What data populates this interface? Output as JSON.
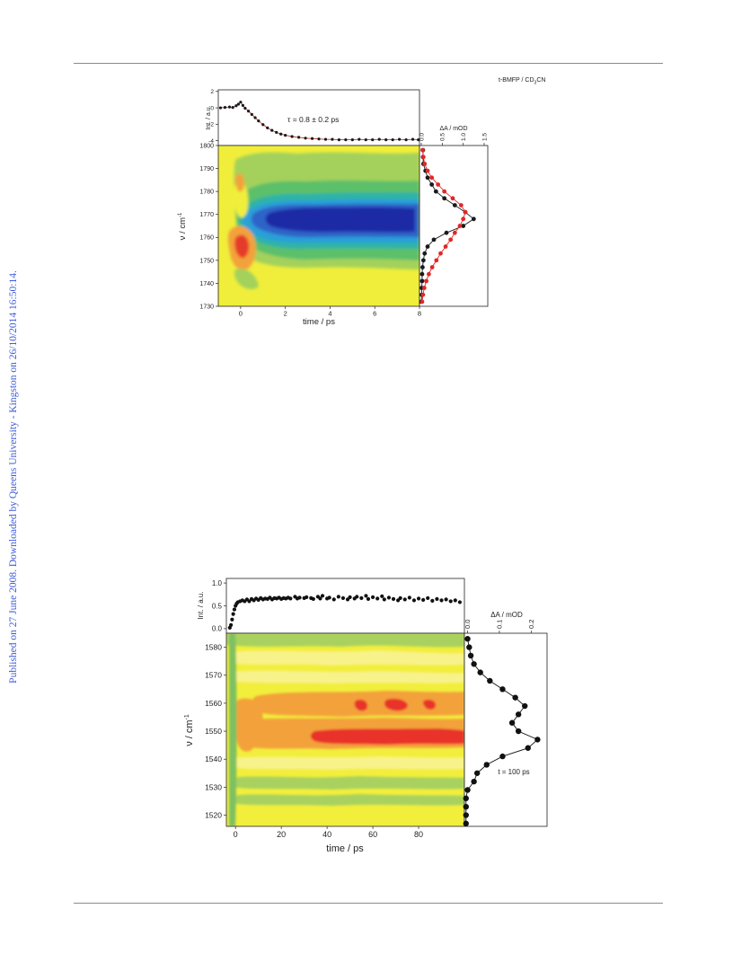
{
  "side_note": "Published on 27 June 2008. Downloaded by Queens University - Kingston on 26/10/2014 16:50:14.",
  "figure1": {
    "sample_label": "t-BMFP / CD3CN",
    "sample_label_parts": {
      "pre": "t-BMFP / CD",
      "sub": "3",
      "post": "CN"
    },
    "tau_text": "τ = 0.8 ± 0.2 ps",
    "kinetics": {
      "ylabel": "Int. / a.u.",
      "yticks": [
        "2",
        "0",
        "-2",
        "-4"
      ],
      "ytick_values": [
        2,
        0,
        -2,
        -4
      ],
      "ylim": [
        -4.6,
        2.2
      ],
      "xlim": [
        -1,
        8
      ],
      "points": [
        [
          -0.9,
          0.0
        ],
        [
          -0.7,
          0.05
        ],
        [
          -0.5,
          0.1
        ],
        [
          -0.35,
          0.05
        ],
        [
          -0.2,
          0.25
        ],
        [
          -0.1,
          0.45
        ],
        [
          0.0,
          0.7
        ],
        [
          0.1,
          0.3
        ],
        [
          0.2,
          -0.05
        ],
        [
          0.35,
          -0.4
        ],
        [
          0.5,
          -0.8
        ],
        [
          0.65,
          -1.2
        ],
        [
          0.8,
          -1.6
        ],
        [
          1.0,
          -2.05
        ],
        [
          1.2,
          -2.45
        ],
        [
          1.4,
          -2.75
        ],
        [
          1.6,
          -3.0
        ],
        [
          1.8,
          -3.2
        ],
        [
          2.0,
          -3.35
        ],
        [
          2.3,
          -3.5
        ],
        [
          2.6,
          -3.6
        ],
        [
          2.9,
          -3.7
        ],
        [
          3.2,
          -3.75
        ],
        [
          3.5,
          -3.8
        ],
        [
          3.8,
          -3.85
        ],
        [
          4.1,
          -3.85
        ],
        [
          4.4,
          -3.9
        ],
        [
          4.7,
          -3.9
        ],
        [
          5.0,
          -3.9
        ],
        [
          5.3,
          -3.85
        ],
        [
          5.6,
          -3.9
        ],
        [
          5.9,
          -3.9
        ],
        [
          6.2,
          -3.85
        ],
        [
          6.5,
          -3.9
        ],
        [
          6.8,
          -3.9
        ],
        [
          7.1,
          -3.85
        ],
        [
          7.4,
          -3.9
        ],
        [
          7.7,
          -3.85
        ],
        [
          7.95,
          -3.9
        ]
      ]
    },
    "contour": {
      "ylabel_main": "ν / cm",
      "ylabel_sup": "-1",
      "xlabel": "time / ps",
      "xticks": [
        "0",
        "2",
        "4",
        "6",
        "8"
      ],
      "xtick_values": [
        0,
        2,
        4,
        6,
        8
      ],
      "yticks": [
        "1800",
        "1790",
        "1780",
        "1770",
        "1760",
        "1750",
        "1740",
        "1730"
      ],
      "ytick_values": [
        1800,
        1790,
        1780,
        1770,
        1760,
        1750,
        1740,
        1730
      ],
      "xlim": [
        -1,
        8
      ],
      "ylim": [
        1730,
        1800
      ],
      "center_wavenumber": 1767,
      "colors": {
        "background": "#f0ee3a",
        "green_outer": "#a3d15b",
        "green_inner": "#5cc06a",
        "teal": "#2fb3a8",
        "cyan": "#2c9fd8",
        "blue": "#2f63c8",
        "navy": "#1c2aa6",
        "orange": "#f3a23a",
        "red": "#e63a2a"
      }
    },
    "spectrum": {
      "xlabel": "ΔA / mOD",
      "xticks": [
        "0.0",
        "0.5",
        "1.0",
        "1.5"
      ],
      "xtick_values": [
        0,
        0.5,
        1.0,
        1.5
      ],
      "xlim": [
        0,
        1.5
      ],
      "series": [
        {
          "color": "#1a1a1a",
          "points": [
            [
              1798,
              0.04
            ],
            [
              1795,
              0.04
            ],
            [
              1792,
              0.05
            ],
            [
              1789,
              0.1
            ],
            [
              1786,
              0.15
            ],
            [
              1783,
              0.25
            ],
            [
              1780,
              0.35
            ],
            [
              1777,
              0.55
            ],
            [
              1774,
              0.8
            ],
            [
              1771,
              1.05
            ],
            [
              1768,
              1.25
            ],
            [
              1765,
              1.0
            ],
            [
              1762,
              0.6
            ],
            [
              1759,
              0.3
            ],
            [
              1756,
              0.15
            ],
            [
              1753,
              0.08
            ],
            [
              1750,
              0.05
            ],
            [
              1747,
              0.03
            ],
            [
              1744,
              0.02
            ],
            [
              1741,
              0.02
            ],
            [
              1738,
              0.01
            ],
            [
              1735,
              0.01
            ],
            [
              1732,
              0.0
            ]
          ]
        },
        {
          "color": "#e02828",
          "points": [
            [
              1798,
              0.03
            ],
            [
              1795,
              0.05
            ],
            [
              1792,
              0.08
            ],
            [
              1789,
              0.15
            ],
            [
              1786,
              0.25
            ],
            [
              1783,
              0.4
            ],
            [
              1780,
              0.55
            ],
            [
              1777,
              0.75
            ],
            [
              1774,
              0.95
            ],
            [
              1771,
              1.05
            ],
            [
              1768,
              1.0
            ],
            [
              1765,
              0.92
            ],
            [
              1762,
              0.8
            ],
            [
              1759,
              0.7
            ],
            [
              1756,
              0.58
            ],
            [
              1753,
              0.46
            ],
            [
              1750,
              0.36
            ],
            [
              1747,
              0.26
            ],
            [
              1744,
              0.18
            ],
            [
              1741,
              0.12
            ],
            [
              1738,
              0.07
            ],
            [
              1735,
              0.04
            ],
            [
              1732,
              0.02
            ]
          ]
        }
      ]
    }
  },
  "figure2": {
    "kinetics": {
      "ylabel": "Int. / a.u.",
      "yticks": [
        "1.0",
        "0.5",
        "0.0"
      ],
      "ytick_values": [
        1.0,
        0.5,
        0.0
      ],
      "ylim": [
        -0.1,
        1.1
      ],
      "xlim": [
        -4,
        100
      ],
      "points": [
        [
          -2.5,
          0.02
        ],
        [
          -2,
          0.08
        ],
        [
          -1.5,
          0.2
        ],
        [
          -1,
          0.32
        ],
        [
          -0.5,
          0.42
        ],
        [
          0,
          0.5
        ],
        [
          0.5,
          0.55
        ],
        [
          1,
          0.58
        ],
        [
          2,
          0.6
        ],
        [
          3,
          0.62
        ],
        [
          4,
          0.6
        ],
        [
          5,
          0.64
        ],
        [
          6,
          0.6
        ],
        [
          7,
          0.65
        ],
        [
          8,
          0.62
        ],
        [
          9,
          0.66
        ],
        [
          10,
          0.63
        ],
        [
          11,
          0.67
        ],
        [
          12,
          0.64
        ],
        [
          13,
          0.66
        ],
        [
          14,
          0.65
        ],
        [
          15,
          0.68
        ],
        [
          16,
          0.64
        ],
        [
          17,
          0.67
        ],
        [
          18,
          0.66
        ],
        [
          19,
          0.68
        ],
        [
          20,
          0.65
        ],
        [
          21,
          0.67
        ],
        [
          22,
          0.66
        ],
        [
          23,
          0.68
        ],
        [
          24,
          0.66
        ],
        [
          26,
          0.7
        ],
        [
          27,
          0.66
        ],
        [
          28,
          0.68
        ],
        [
          30,
          0.67
        ],
        [
          31,
          0.69
        ],
        [
          33,
          0.67
        ],
        [
          34,
          0.65
        ],
        [
          36,
          0.7
        ],
        [
          37,
          0.66
        ],
        [
          38,
          0.72
        ],
        [
          40,
          0.66
        ],
        [
          41,
          0.68
        ],
        [
          43,
          0.64
        ],
        [
          45,
          0.7
        ],
        [
          47,
          0.67
        ],
        [
          49,
          0.64
        ],
        [
          50,
          0.69
        ],
        [
          52,
          0.66
        ],
        [
          53,
          0.7
        ],
        [
          55,
          0.67
        ],
        [
          57,
          0.72
        ],
        [
          58,
          0.65
        ],
        [
          60,
          0.69
        ],
        [
          62,
          0.66
        ],
        [
          64,
          0.71
        ],
        [
          65,
          0.64
        ],
        [
          67,
          0.68
        ],
        [
          69,
          0.65
        ],
        [
          71,
          0.62
        ],
        [
          72,
          0.67
        ],
        [
          74,
          0.64
        ],
        [
          76,
          0.68
        ],
        [
          78,
          0.62
        ],
        [
          80,
          0.66
        ],
        [
          82,
          0.63
        ],
        [
          84,
          0.67
        ],
        [
          86,
          0.61
        ],
        [
          88,
          0.65
        ],
        [
          90,
          0.62
        ],
        [
          92,
          0.64
        ],
        [
          94,
          0.6
        ],
        [
          96,
          0.62
        ],
        [
          98,
          0.58
        ]
      ]
    },
    "contour": {
      "ylabel_main": "ν / cm",
      "ylabel_sup": "-1",
      "xlabel": "time / ps",
      "xticks": [
        "0",
        "20",
        "40",
        "60",
        "80"
      ],
      "xtick_values": [
        0,
        20,
        40,
        60,
        80
      ],
      "yticks": [
        "1580",
        "1570",
        "1560",
        "1550",
        "1540",
        "1530",
        "1520"
      ],
      "ytick_values": [
        1580,
        1570,
        1560,
        1550,
        1540,
        1530,
        1520
      ],
      "xlim": [
        -4,
        100
      ],
      "ylim": [
        1516,
        1585
      ],
      "colors": {
        "background": "#f2ee3c",
        "light": "#f8f28a",
        "green": "#a8d15e",
        "green_dark": "#7fc060",
        "orange": "#f3a23a",
        "red": "#e8322a"
      }
    },
    "spectrum": {
      "xlabel": "ΔA / mOD",
      "xticks": [
        "0.0",
        "0.1",
        "0.2"
      ],
      "xtick_values": [
        0,
        0.1,
        0.2
      ],
      "xlim": [
        -0.01,
        0.25
      ],
      "annotation": "t = 100 ps",
      "series": [
        {
          "color": "#111111",
          "points": [
            [
              1583,
              0.0
            ],
            [
              1580,
              0.005
            ],
            [
              1577,
              0.01
            ],
            [
              1574,
              0.02
            ],
            [
              1571,
              0.04
            ],
            [
              1568,
              0.07
            ],
            [
              1565,
              0.11
            ],
            [
              1562,
              0.15
            ],
            [
              1559,
              0.18
            ],
            [
              1556,
              0.16
            ],
            [
              1553,
              0.14
            ],
            [
              1550,
              0.16
            ],
            [
              1547,
              0.22
            ],
            [
              1544,
              0.19
            ],
            [
              1541,
              0.11
            ],
            [
              1538,
              0.06
            ],
            [
              1535,
              0.03
            ],
            [
              1532,
              0.02
            ],
            [
              1529,
              0.0
            ],
            [
              1526,
              -0.005
            ],
            [
              1523,
              -0.005
            ],
            [
              1520,
              -0.005
            ],
            [
              1517,
              -0.005
            ]
          ]
        }
      ]
    }
  }
}
